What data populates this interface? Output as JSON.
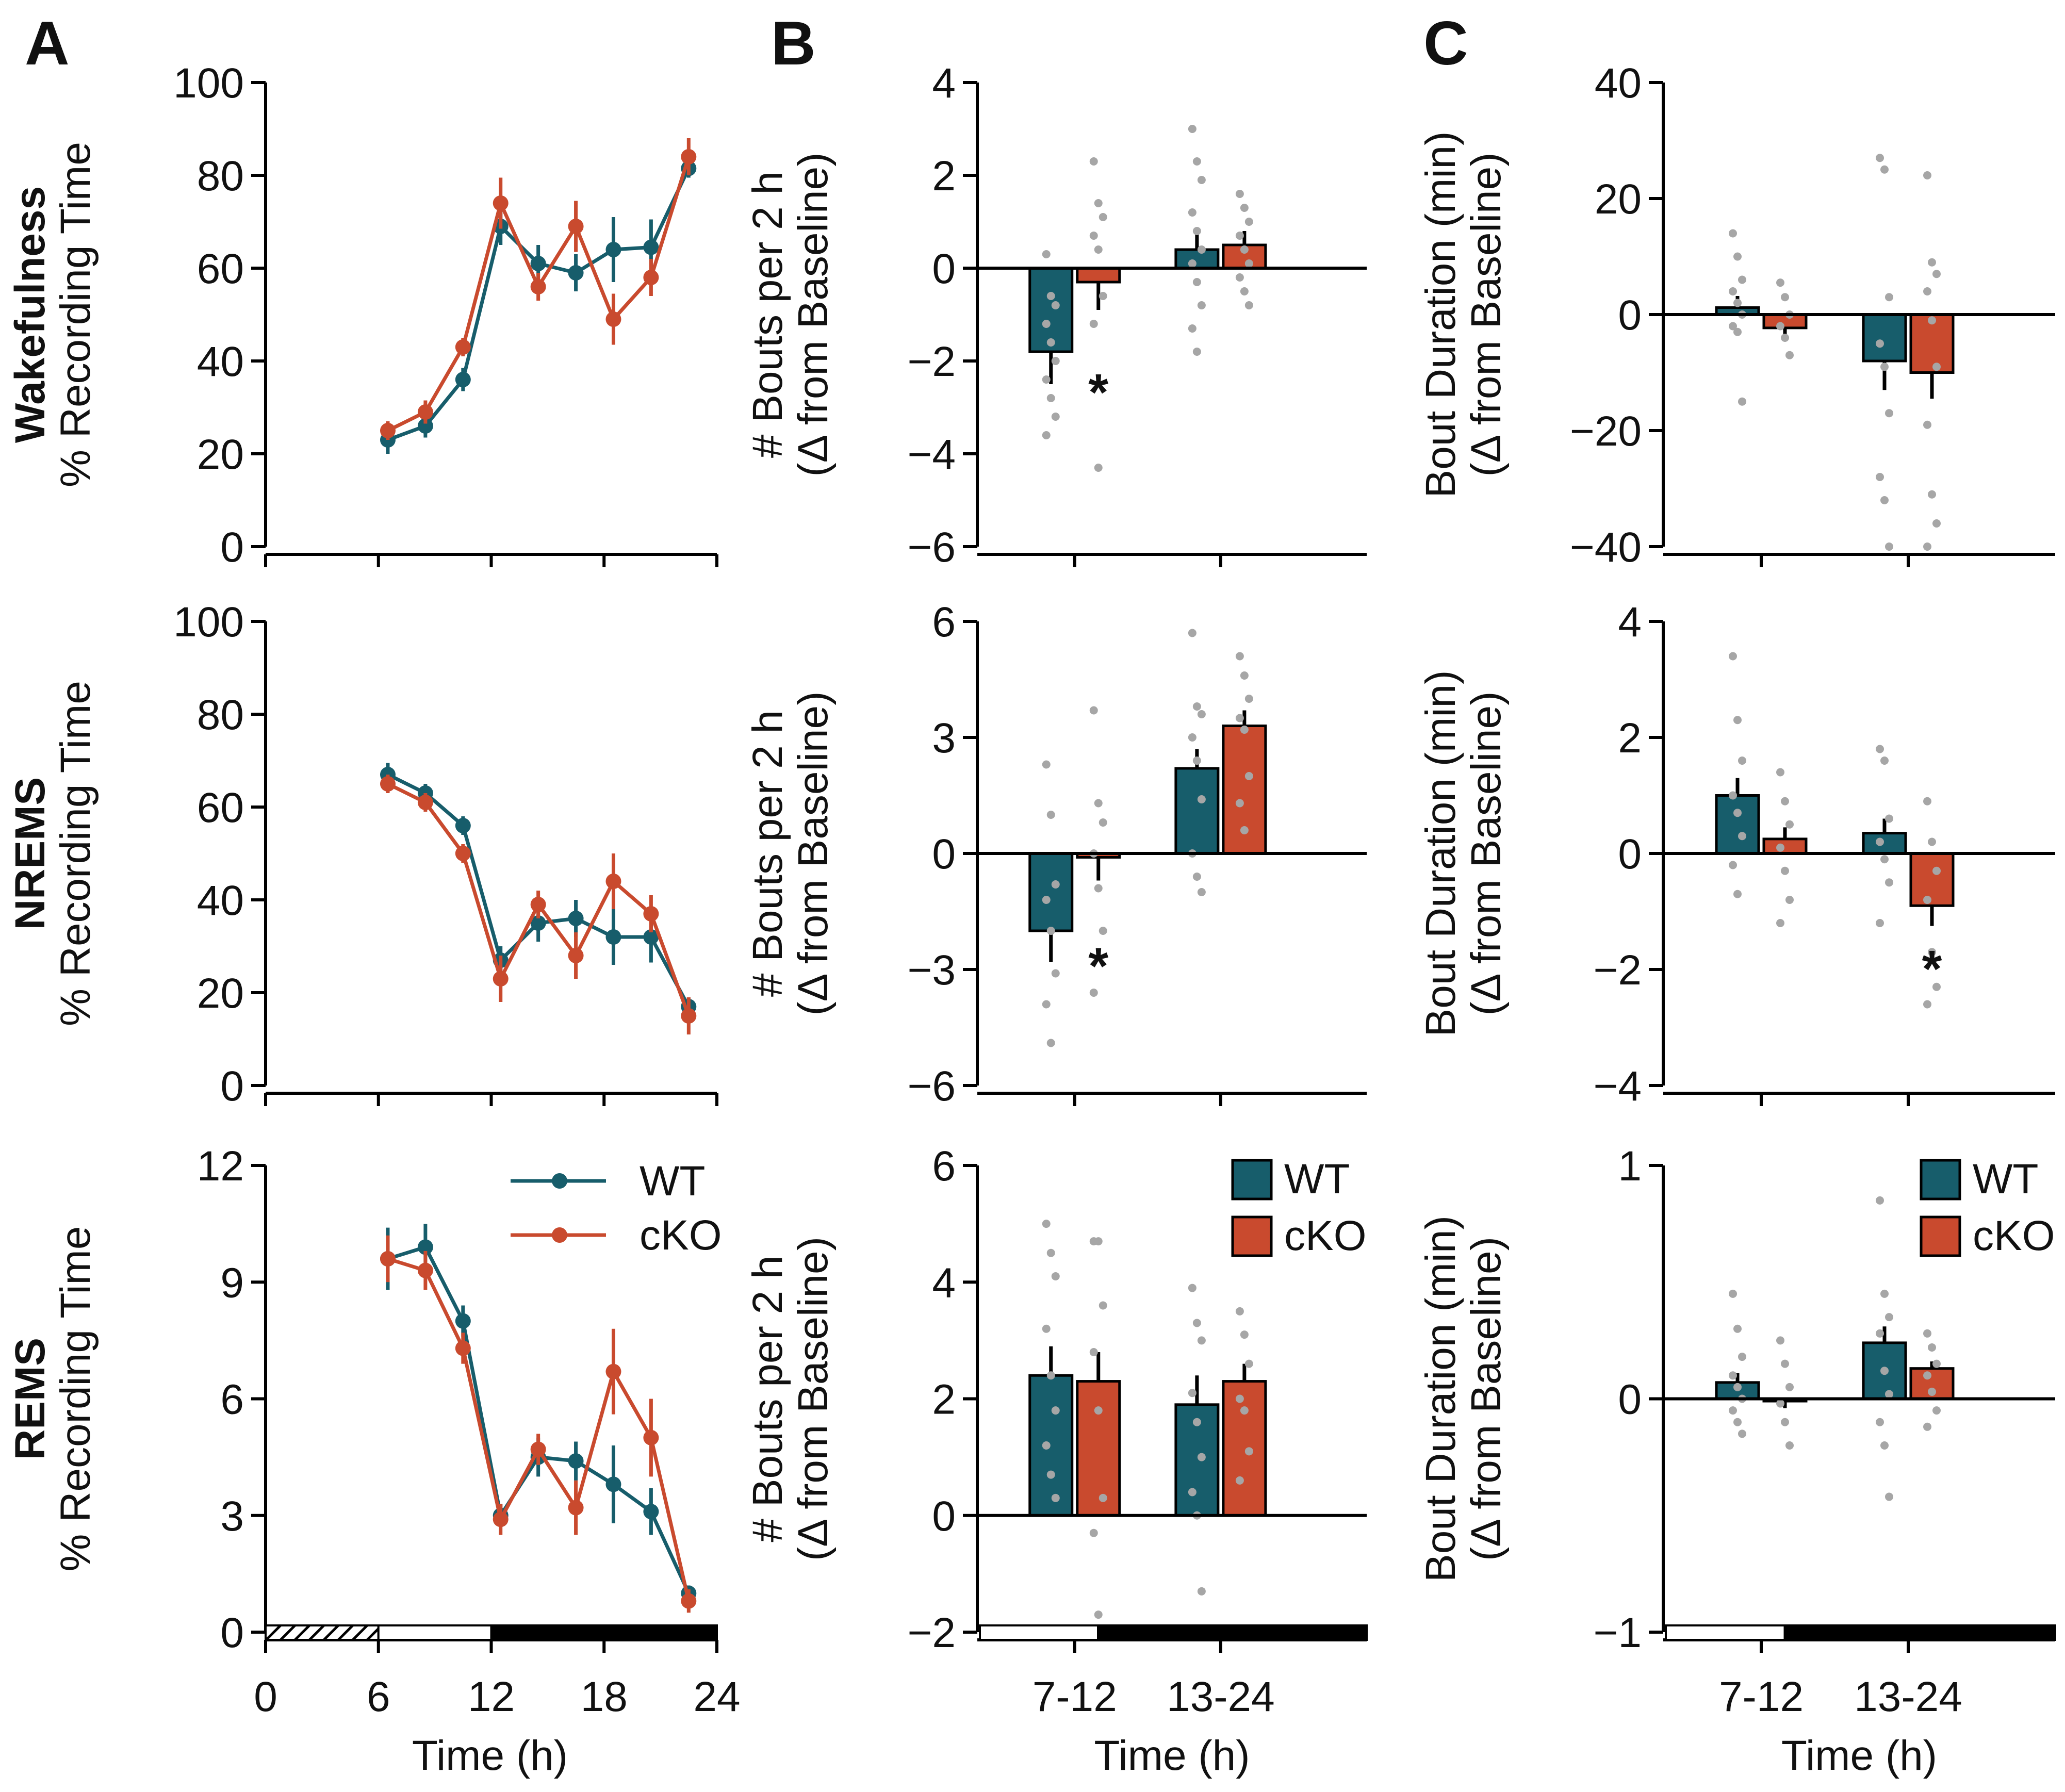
{
  "colors": {
    "wt": "#175d6b",
    "cko": "#c94a2e",
    "dots": "#a6a6a6",
    "axis": "#000000"
  },
  "panel_letters": [
    "A",
    "B",
    "C"
  ],
  "row_labels": [
    "Wakefulness",
    "NREMS",
    "REMS"
  ],
  "legend": {
    "wt": "WT",
    "cko": "cKO"
  },
  "shared": {
    "time_xlabel": "Time (h)",
    "bar_categories": [
      "7-12",
      "13-24"
    ],
    "significance_mark": "*"
  },
  "chart_data": [
    {
      "id": "A1",
      "type": "line",
      "title": "Wakefulness",
      "ylabel": "% Recording Time",
      "ylim": [
        0,
        100
      ],
      "yticks": [
        "0",
        "20",
        "40",
        "60",
        "80",
        "100"
      ],
      "xlim": [
        0,
        24
      ],
      "xticks": [
        "0",
        "6",
        "12",
        "18",
        "24"
      ],
      "xlabel": "Time (h)",
      "x": [
        6.5,
        8.5,
        10.5,
        12.5,
        14.5,
        16.5,
        18.5,
        20.5,
        22.5
      ],
      "series": [
        {
          "name": "WT",
          "values": [
            23,
            26,
            36,
            69,
            61,
            59,
            64,
            64.5,
            81.5
          ],
          "errors": [
            3,
            2.5,
            2.5,
            4,
            4,
            4,
            7,
            6,
            2
          ]
        },
        {
          "name": "cKO",
          "values": [
            25,
            29,
            43,
            74,
            56,
            69,
            49,
            58,
            84
          ],
          "errors": [
            2,
            2.5,
            2,
            5.5,
            3,
            5.5,
            5.5,
            4,
            4
          ]
        }
      ]
    },
    {
      "id": "A2",
      "type": "line",
      "title": "NREMS",
      "ylabel": "% Recording Time",
      "ylim": [
        0,
        100
      ],
      "yticks": [
        "0",
        "20",
        "40",
        "60",
        "80",
        "100"
      ],
      "xlim": [
        0,
        24
      ],
      "xticks": [
        "0",
        "6",
        "12",
        "18",
        "24"
      ],
      "xlabel": "Time (h)",
      "x": [
        6.5,
        8.5,
        10.5,
        12.5,
        14.5,
        16.5,
        18.5,
        20.5,
        22.5
      ],
      "series": [
        {
          "name": "WT",
          "values": [
            67,
            63,
            56,
            27,
            35,
            36,
            32,
            32,
            17
          ],
          "errors": [
            2.5,
            2,
            2,
            3,
            4,
            4,
            6,
            5.5,
            2
          ]
        },
        {
          "name": "cKO",
          "values": [
            65,
            61,
            50,
            23,
            39,
            28,
            44,
            37,
            15
          ],
          "errors": [
            2,
            2,
            2,
            5,
            3,
            5,
            6,
            4,
            4
          ]
        }
      ]
    },
    {
      "id": "A3",
      "type": "line",
      "title": "REMS",
      "ylabel": "% Recording Time",
      "ylim": [
        0,
        12
      ],
      "yticks": [
        "0",
        "3",
        "6",
        "9",
        "12"
      ],
      "xlim": [
        0,
        24
      ],
      "xticks": [
        "0",
        "6",
        "12",
        "18",
        "24"
      ],
      "xlabel": "Time (h)",
      "x": [
        6.5,
        8.5,
        10.5,
        12.5,
        14.5,
        16.5,
        18.5,
        20.5,
        22.5
      ],
      "series": [
        {
          "name": "WT",
          "values": [
            9.6,
            9.9,
            8.0,
            3.0,
            4.5,
            4.4,
            3.8,
            3.1,
            1.0
          ],
          "errors": [
            0.8,
            0.6,
            0.4,
            0.3,
            0.5,
            0.5,
            1.0,
            0.6,
            0.2
          ]
        },
        {
          "name": "cKO",
          "values": [
            9.6,
            9.3,
            7.3,
            2.9,
            4.7,
            3.2,
            6.7,
            5.0,
            0.8
          ],
          "errors": [
            0.6,
            0.5,
            0.4,
            0.4,
            0.4,
            0.7,
            1.1,
            1.0,
            0.3
          ]
        }
      ],
      "light_bar": [
        "hatched 0-6",
        "light 6-12",
        "dark 12-24"
      ]
    },
    {
      "id": "B1",
      "type": "bar",
      "ylabel": "# Bouts per 2 h",
      "ylabel2": "(Δ from Baseline)",
      "ylim": [
        -6,
        4
      ],
      "yticks": [
        "−6",
        "−4",
        "−2",
        "0",
        "2",
        "4"
      ],
      "categories": [
        "7-12",
        "13-24"
      ],
      "series": [
        {
          "name": "WT",
          "values": [
            -1.8,
            0.4
          ],
          "errors": [
            0.7,
            0.4
          ],
          "points": [
            [
              0.3,
              -0.6,
              -0.8,
              -1.2,
              -1.6,
              -2.0,
              -2.4,
              -2.8,
              -3.2,
              -3.6
            ],
            [
              3.0,
              2.3,
              1.9,
              1.2,
              0.8,
              0.4,
              0.1,
              -0.3,
              -0.8,
              -1.3,
              -1.8
            ]
          ]
        },
        {
          "name": "cKO",
          "values": [
            -0.3,
            0.5
          ],
          "errors": [
            0.6,
            0.3
          ],
          "points": [
            [
              2.3,
              1.4,
              1.1,
              0.7,
              0.4,
              -0.6,
              -1.2,
              -4.3
            ],
            [
              1.6,
              1.3,
              1.0,
              0.7,
              0.4,
              0.1,
              -0.2,
              -0.5,
              -0.8
            ]
          ]
        }
      ],
      "significance": [
        {
          "series": "cKO",
          "category": "7-12",
          "y": -2.5
        }
      ]
    },
    {
      "id": "B2",
      "type": "bar",
      "ylabel": "# Bouts per 2 h",
      "ylabel2": "(Δ from Baseline)",
      "ylim": [
        -6,
        6
      ],
      "yticks": [
        "−6",
        "−3",
        "0",
        "3",
        "6"
      ],
      "categories": [
        "7-12",
        "13-24"
      ],
      "series": [
        {
          "name": "WT",
          "values": [
            -2.0,
            2.2
          ],
          "errors": [
            0.8,
            0.5
          ],
          "points": [
            [
              2.3,
              1.0,
              -0.8,
              -1.2,
              -2.0,
              -3.1,
              -3.9,
              -4.9
            ],
            [
              5.7,
              3.8,
              3.6,
              3.0,
              2.4,
              1.4,
              0.0,
              -0.6,
              -1.0
            ]
          ]
        },
        {
          "name": "cKO",
          "values": [
            -0.1,
            3.3
          ],
          "errors": [
            0.6,
            0.4
          ],
          "points": [
            [
              3.7,
              1.3,
              0.8,
              0.0,
              -0.9,
              -2.0,
              -3.6
            ],
            [
              5.1,
              4.6,
              4.0,
              3.5,
              3.2,
              2.0,
              1.3,
              0.6
            ]
          ]
        }
      ],
      "significance": [
        {
          "series": "cKO",
          "category": "7-12",
          "y": -2.7
        }
      ]
    },
    {
      "id": "B3",
      "type": "bar",
      "ylabel": "# Bouts per 2 h",
      "ylabel2": "(Δ from Baseline)",
      "ylim": [
        -2,
        6
      ],
      "yticks": [
        "−2",
        "0",
        "2",
        "4",
        "6"
      ],
      "categories": [
        "7-12",
        "13-24"
      ],
      "series": [
        {
          "name": "WT",
          "values": [
            2.4,
            1.9
          ],
          "errors": [
            0.5,
            0.5
          ],
          "points": [
            [
              5.0,
              4.5,
              4.1,
              3.2,
              2.4,
              1.8,
              1.2,
              0.7,
              0.3
            ],
            [
              3.9,
              3.3,
              3.0,
              2.1,
              1.6,
              1.0,
              0.4,
              0.0,
              -1.3
            ]
          ]
        },
        {
          "name": "cKO",
          "values": [
            2.3,
            2.3
          ],
          "errors": [
            0.5,
            0.3
          ],
          "points": [
            [
              4.7,
              4.7,
              3.6,
              2.8,
              1.8,
              0.3,
              -0.3,
              -1.7
            ],
            [
              3.5,
              3.1,
              2.6,
              2.0,
              1.8,
              1.1,
              0.6
            ]
          ]
        }
      ]
    },
    {
      "id": "C1",
      "type": "bar",
      "ylabel": "Bout Duration (min)",
      "ylabel2": "(Δ from Baseline)",
      "ylim": [
        -40,
        40
      ],
      "yticks": [
        "−40",
        "−20",
        "0",
        "20",
        "40"
      ],
      "categories": [
        "7-12",
        "13-24"
      ],
      "series": [
        {
          "name": "WT",
          "values": [
            1.2,
            -8.0
          ],
          "errors": [
            2.0,
            5.0
          ],
          "points": [
            [
              14,
              10,
              6,
              4,
              2,
              0,
              -2,
              -3,
              -15
            ],
            [
              27,
              25,
              3,
              -5,
              -9,
              -17,
              -28,
              -32,
              -40
            ]
          ]
        },
        {
          "name": "cKO",
          "values": [
            -2.3,
            -10.0
          ],
          "errors": [
            1.5,
            4.5
          ],
          "points": [
            [
              5.5,
              3,
              0,
              -2,
              -4,
              -7
            ],
            [
              24,
              9,
              7,
              4,
              -1,
              -9,
              -19,
              -31,
              -36,
              -40
            ]
          ]
        }
      ]
    },
    {
      "id": "C2",
      "type": "bar",
      "ylabel": "Bout Duration (min)",
      "ylabel2": "(Δ from Baseline)",
      "ylim": [
        -4,
        4
      ],
      "yticks": [
        "−4",
        "−2",
        "0",
        "2",
        "4"
      ],
      "categories": [
        "7-12",
        "13-24"
      ],
      "series": [
        {
          "name": "WT",
          "values": [
            1.0,
            0.35
          ],
          "errors": [
            0.3,
            0.25
          ],
          "points": [
            [
              3.4,
              2.3,
              1.6,
              1.0,
              0.7,
              0.3,
              -0.2,
              -0.7
            ],
            [
              1.8,
              1.6,
              0.6,
              0.2,
              -0.1,
              -0.5,
              -1.2
            ]
          ]
        },
        {
          "name": "cKO",
          "values": [
            0.25,
            -0.9
          ],
          "errors": [
            0.2,
            0.35
          ],
          "points": [
            [
              1.4,
              0.9,
              0.5,
              0.1,
              -0.3,
              -0.8,
              -1.2
            ],
            [
              0.9,
              0.2,
              -0.3,
              -0.8,
              -1.7,
              -2.3,
              -2.6
            ]
          ]
        }
      ],
      "significance": [
        {
          "series": "cKO",
          "category": "13-24",
          "y": -1.85
        }
      ]
    },
    {
      "id": "C3",
      "type": "bar",
      "ylabel": "Bout Duration (min)",
      "ylabel2": "(Δ from Baseline)",
      "ylim": [
        -1,
        1
      ],
      "yticks": [
        "−1",
        "0",
        "1"
      ],
      "categories": [
        "7-12",
        "13-24"
      ],
      "series": [
        {
          "name": "WT",
          "values": [
            0.07,
            0.24
          ],
          "errors": [
            0.04,
            0.07
          ],
          "points": [
            [
              0.45,
              0.3,
              0.18,
              0.1,
              0.05,
              0.0,
              -0.05,
              -0.1,
              -0.15
            ],
            [
              0.85,
              0.45,
              0.35,
              0.28,
              0.12,
              0.02,
              -0.1,
              -0.2,
              -0.42
            ]
          ]
        },
        {
          "name": "cKO",
          "values": [
            -0.01,
            0.13
          ],
          "errors": [
            0.03,
            0.03
          ],
          "points": [
            [
              0.25,
              0.15,
              0.05,
              -0.02,
              -0.1,
              -0.2
            ],
            [
              0.28,
              0.22,
              0.15,
              0.1,
              0.03,
              -0.05,
              -0.12
            ]
          ]
        }
      ]
    }
  ]
}
